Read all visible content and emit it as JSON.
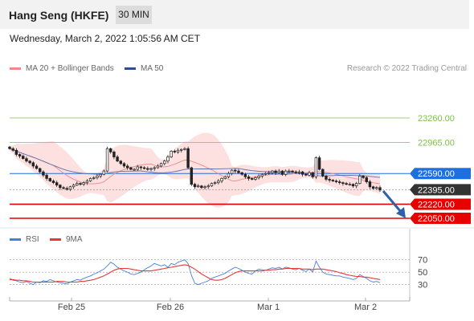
{
  "header": {
    "title": "Hang Seng (HKFE)",
    "timeframe": "30 MIN",
    "datetime": "Wednesday, March 2, 2022 1:05:56 AM CET"
  },
  "legend": {
    "ma20_label": "MA 20 + Bollinger Bands",
    "ma50_label": "MA 50",
    "credit": "Research © 2022 Trading Central"
  },
  "rsi_legend": {
    "rsi_label": "RSI",
    "ma_label": "9MA"
  },
  "colors": {
    "green_level": "#7cc24a",
    "blue_level": "#1f6fe0",
    "red_level": "#e60000",
    "current": "#333333",
    "bollinger": "#fde0e0",
    "ma50": "#5a6fa8",
    "ma20": "#e98a8a",
    "bull_candle": "#ffffff",
    "bear_candle": "#222222",
    "rsi_line": "#4a7fd6",
    "rsi_ma": "#e23a3a",
    "arrow": "#2f5fa8"
  },
  "chart_data": {
    "type": "candlestick",
    "x_ticks": [
      "Feb 25",
      "Feb 26",
      "Mar 1",
      "Mar 2"
    ],
    "price_axis": [
      23260,
      22965,
      22590,
      22220,
      22050
    ],
    "ylim": [
      22050,
      23260
    ],
    "levels": [
      {
        "value": 23260,
        "label": "23260.00",
        "kind": "resistance",
        "color": "#7cc24a"
      },
      {
        "value": 22965,
        "label": "22965.00",
        "kind": "resistance",
        "color": "#7cc24a"
      },
      {
        "value": 22590,
        "label": "22590.00",
        "kind": "pivot",
        "color": "#1f6fe0"
      },
      {
        "value": 22395,
        "label": "22395.00",
        "kind": "last",
        "color": "#333333"
      },
      {
        "value": 22220,
        "label": "22220.00",
        "kind": "support",
        "color": "#e60000"
      },
      {
        "value": 22050,
        "label": "22050.00",
        "kind": "support",
        "color": "#e60000"
      }
    ],
    "closes": [
      22890,
      22870,
      22820,
      22800,
      22770,
      22740,
      22720,
      22680,
      22650,
      22610,
      22570,
      22530,
      22500,
      22480,
      22450,
      22420,
      22410,
      22400,
      22430,
      22450,
      22470,
      22460,
      22480,
      22500,
      22530,
      22540,
      22560,
      22580,
      22620,
      22890,
      22850,
      22790,
      22740,
      22710,
      22680,
      22660,
      22640,
      22640,
      22670,
      22660,
      22650,
      22640,
      22650,
      22660,
      22680,
      22710,
      22740,
      22790,
      22860,
      22850,
      22870,
      22880,
      22890,
      22660,
      22460,
      22430,
      22440,
      22420,
      22430,
      22440,
      22470,
      22480,
      22500,
      22530,
      22550,
      22590,
      22630,
      22620,
      22600,
      22580,
      22550,
      22530,
      22520,
      22540,
      22560,
      22580,
      22590,
      22600,
      22620,
      22600,
      22620,
      22580,
      22620,
      22620,
      22610,
      22600,
      22610,
      22580,
      22570,
      22600,
      22550,
      22780,
      22640,
      22560,
      22520,
      22510,
      22500,
      22490,
      22480,
      22470,
      22460,
      22460,
      22440,
      22470,
      22560,
      22540,
      22490,
      22430,
      22410,
      22420,
      22390
    ],
    "rsi": {
      "levels": [
        70,
        50,
        30
      ],
      "ylim": [
        10,
        80
      ],
      "values": [
        40,
        37,
        36,
        34,
        33,
        35,
        32,
        30,
        34,
        33,
        36,
        35,
        38,
        36,
        34,
        33,
        32,
        31,
        34,
        36,
        38,
        37,
        40,
        42,
        44,
        47,
        49,
        52,
        55,
        60,
        66,
        63,
        58,
        55,
        52,
        50,
        47,
        46,
        48,
        50,
        54,
        57,
        60,
        64,
        62,
        60,
        62,
        58,
        64,
        62,
        66,
        68,
        70,
        64,
        45,
        32,
        30,
        32,
        34,
        36,
        40,
        42,
        44,
        46,
        48,
        52,
        55,
        58,
        56,
        53,
        50,
        48,
        47,
        52,
        55,
        54,
        53,
        55,
        57,
        56,
        58,
        55,
        58,
        57,
        55,
        54,
        56,
        53,
        51,
        55,
        50,
        68,
        58,
        50,
        47,
        46,
        45,
        44,
        44,
        42,
        41,
        40,
        38,
        40,
        46,
        43,
        40,
        36,
        34,
        35,
        33
      ],
      "ma": [
        38,
        38,
        37,
        37,
        36,
        36,
        35,
        34,
        34,
        34,
        34,
        34,
        34,
        34,
        35,
        35,
        35,
        34,
        34,
        34,
        34,
        35,
        35,
        36,
        37,
        38,
        40,
        42,
        44,
        47,
        50,
        53,
        55,
        56,
        56,
        56,
        55,
        54,
        53,
        52,
        52,
        52,
        52,
        53,
        54,
        55,
        56,
        57,
        58,
        59,
        60,
        61,
        62,
        61,
        58,
        55,
        51,
        47,
        44,
        41,
        38,
        37,
        37,
        38,
        40,
        43,
        46,
        49,
        51,
        52,
        52,
        52,
        52,
        52,
        52,
        52,
        53,
        53,
        54,
        54,
        55,
        55,
        56,
        56,
        56,
        56,
        56,
        55,
        55,
        55,
        54,
        55,
        55,
        55,
        54,
        53,
        52,
        51,
        49,
        48,
        46,
        45,
        44,
        43,
        43,
        42,
        42,
        41,
        40,
        39,
        38
      ]
    }
  }
}
